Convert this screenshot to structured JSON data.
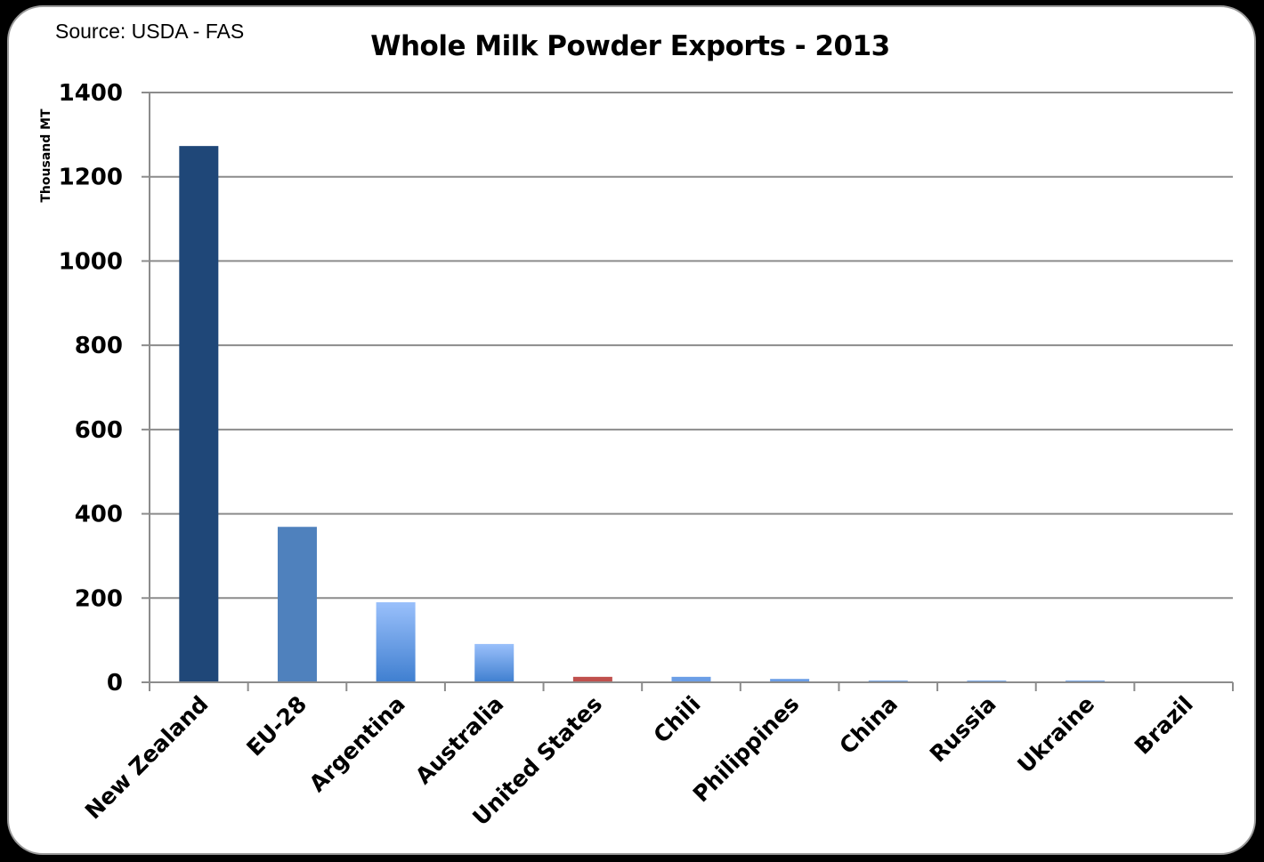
{
  "source": "Source: USDA - FAS",
  "chart_data": {
    "type": "bar",
    "title": "Whole Milk Powder Exports  - 2013",
    "xlabel": "",
    "ylabel": "Thousand MT",
    "ylim": [
      0,
      1400
    ],
    "yticks": [
      0,
      200,
      400,
      600,
      800,
      1000,
      1200,
      1400
    ],
    "grid": true,
    "legend": "none",
    "categories": [
      "New Zealand",
      "EU-28",
      "Argentina",
      "Australia",
      "United States",
      "Chili",
      "Philippines",
      "China",
      "Russia",
      "Ukraine",
      "Brazil"
    ],
    "values": [
      1273,
      369,
      190,
      91,
      13,
      13,
      8,
      4,
      4,
      4,
      1
    ],
    "colors": [
      "#1f4778",
      "#4f81bd",
      "#8fb4f0",
      "#8fb4f0",
      "#c0504d",
      "#6b9ee6",
      "#6b9ee6",
      "#6b9ee6",
      "#6b9ee6",
      "#6b9ee6",
      "#6b9ee6"
    ]
  }
}
